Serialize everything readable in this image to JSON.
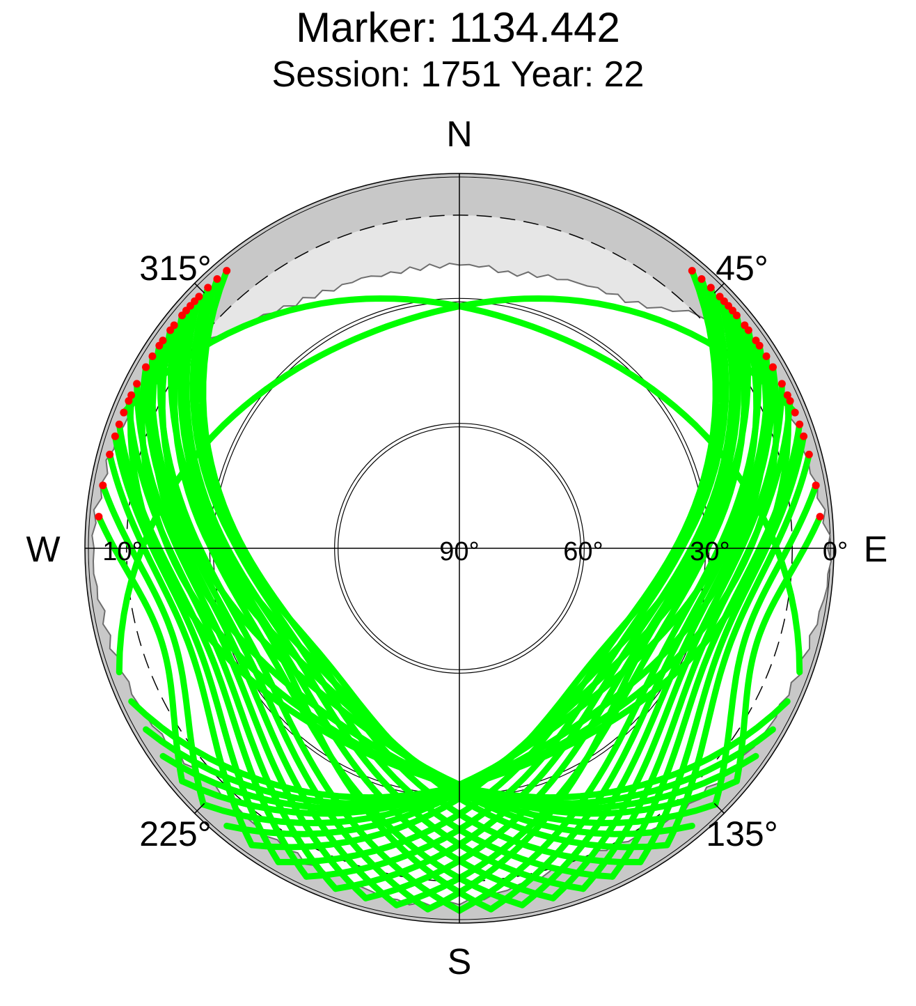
{
  "chart_data": {
    "type": "scatter",
    "projection": "polar-skyplot",
    "title": "Marker: 1134.442",
    "subtitle": "Session: 1751 Year: 22",
    "azimuth_labels": {
      "cardinals": [
        "N",
        "E",
        "S",
        "W"
      ],
      "diagonals": [
        "45°",
        "135°",
        "225°",
        "315°"
      ]
    },
    "elevation_tick_labels": [
      {
        "label": "0°",
        "elevation": 0
      },
      {
        "label": "10°",
        "elevation": 10
      },
      {
        "label": "30°",
        "elevation": 30
      },
      {
        "label": "60°",
        "elevation": 60
      },
      {
        "label": "90°",
        "elevation": 90
      }
    ],
    "elevation_circles": [
      0,
      10,
      30,
      60
    ],
    "dashed_circle_elevation": 10,
    "elevation_range": [
      0,
      90
    ],
    "azimuth_direction": "clockwise-from-north",
    "colors": {
      "track": "#00ff00",
      "endpoint": "#ff0000",
      "outer_band": "#c8c8c8",
      "mask": "#e6e6e6",
      "horizon_line": "#6e6e6e"
    },
    "horizon_profile": [
      {
        "az": 0,
        "el": 22
      },
      {
        "az": 5,
        "el": 22
      },
      {
        "az": 10,
        "el": 23
      },
      {
        "az": 15,
        "el": 22
      },
      {
        "az": 20,
        "el": 21
      },
      {
        "az": 25,
        "el": 20
      },
      {
        "az": 30,
        "el": 19
      },
      {
        "az": 35,
        "el": 18
      },
      {
        "az": 40,
        "el": 15
      },
      {
        "az": 45,
        "el": 10
      },
      {
        "az": 50,
        "el": 8
      },
      {
        "az": 55,
        "el": 6
      },
      {
        "az": 60,
        "el": 5
      },
      {
        "az": 65,
        "el": 5
      },
      {
        "az": 70,
        "el": 4
      },
      {
        "az": 75,
        "el": 4
      },
      {
        "az": 80,
        "el": 3
      },
      {
        "az": 85,
        "el": 2
      },
      {
        "az": 90,
        "el": 1
      },
      {
        "az": 95,
        "el": 1
      },
      {
        "az": 100,
        "el": 2
      },
      {
        "az": 105,
        "el": 3
      },
      {
        "az": 110,
        "el": 3
      },
      {
        "az": 115,
        "el": 4
      },
      {
        "az": 120,
        "el": 4
      },
      {
        "az": 125,
        "el": 5
      },
      {
        "az": 130,
        "el": 6
      },
      {
        "az": 135,
        "el": 7
      },
      {
        "az": 140,
        "el": 7
      },
      {
        "az": 145,
        "el": 8
      },
      {
        "az": 150,
        "el": 9
      },
      {
        "az": 155,
        "el": 10
      },
      {
        "az": 160,
        "el": 10
      },
      {
        "az": 165,
        "el": 9
      },
      {
        "az": 170,
        "el": 8
      },
      {
        "az": 175,
        "el": 6
      },
      {
        "az": 180,
        "el": 5
      },
      {
        "az": 185,
        "el": 4
      },
      {
        "az": 190,
        "el": 4
      },
      {
        "az": 195,
        "el": 5
      },
      {
        "az": 200,
        "el": 6
      },
      {
        "az": 205,
        "el": 6
      },
      {
        "az": 210,
        "el": 7
      },
      {
        "az": 215,
        "el": 7
      },
      {
        "az": 220,
        "el": 8
      },
      {
        "az": 225,
        "el": 8
      },
      {
        "az": 230,
        "el": 7
      },
      {
        "az": 235,
        "el": 6
      },
      {
        "az": 240,
        "el": 5
      },
      {
        "az": 245,
        "el": 4
      },
      {
        "az": 250,
        "el": 4
      },
      {
        "az": 255,
        "el": 3
      },
      {
        "az": 260,
        "el": 3
      },
      {
        "az": 265,
        "el": 2
      },
      {
        "az": 270,
        "el": 2
      },
      {
        "az": 275,
        "el": 2
      },
      {
        "az": 280,
        "el": 3
      },
      {
        "az": 285,
        "el": 3
      },
      {
        "az": 290,
        "el": 4
      },
      {
        "az": 295,
        "el": 5
      },
      {
        "az": 300,
        "el": 7
      },
      {
        "az": 305,
        "el": 9
      },
      {
        "az": 310,
        "el": 12
      },
      {
        "az": 315,
        "el": 15
      },
      {
        "az": 320,
        "el": 17
      },
      {
        "az": 325,
        "el": 19
      },
      {
        "az": 330,
        "el": 20
      },
      {
        "az": 335,
        "el": 21
      },
      {
        "az": 340,
        "el": 21
      },
      {
        "az": 345,
        "el": 22
      },
      {
        "az": 350,
        "el": 22
      },
      {
        "az": 355,
        "el": 22
      }
    ],
    "tracks": [
      {
        "az_start": 46,
        "az_end": 200,
        "el_max": 40
      },
      {
        "az_start": 48,
        "az_end": 195,
        "el_max": 38
      },
      {
        "az_start": 50,
        "az_end": 190,
        "el_max": 35
      },
      {
        "az_start": 52,
        "az_end": 185,
        "el_max": 37
      },
      {
        "az_start": 55,
        "az_end": 180,
        "el_max": 32
      },
      {
        "az_start": 58,
        "az_end": 175,
        "el_max": 30
      },
      {
        "az_start": 60,
        "az_end": 170,
        "el_max": 28
      },
      {
        "az_start": 63,
        "az_end": 165,
        "el_max": 26
      },
      {
        "az_start": 66,
        "az_end": 160,
        "el_max": 24
      },
      {
        "az_start": 70,
        "az_end": 155,
        "el_max": 22
      },
      {
        "az_start": 72,
        "az_end": 150,
        "el_max": 20
      },
      {
        "az_start": 75,
        "az_end": 145,
        "el_max": 18
      },
      {
        "az_start": 42,
        "az_end": 205,
        "el_max": 42
      },
      {
        "az_start": 40,
        "az_end": 210,
        "el_max": 44
      },
      {
        "az_start": 44,
        "az_end": 215,
        "el_max": 45
      },
      {
        "az_start": 47,
        "az_end": 220,
        "el_max": 43
      },
      {
        "az_start": 49,
        "az_end": 225,
        "el_max": 41
      },
      {
        "az_start": 53,
        "az_end": 230,
        "el_max": 39
      },
      {
        "az_start": 56,
        "az_end": 235,
        "el_max": 36
      },
      {
        "az_start": 60,
        "az_end": 240,
        "el_max": 34
      },
      {
        "az_start": 65,
        "az_end": 245,
        "el_max": 33
      },
      {
        "az_start": 68,
        "az_end": 250,
        "el_max": 31
      },
      {
        "az_start": 80,
        "az_end": 135,
        "el_max": 15
      },
      {
        "az_start": 85,
        "az_end": 130,
        "el_max": 12
      },
      {
        "az_start": 314,
        "az_end": 160,
        "el_max": 40
      },
      {
        "az_start": 312,
        "az_end": 165,
        "el_max": 38
      },
      {
        "az_start": 310,
        "az_end": 170,
        "el_max": 35
      },
      {
        "az_start": 308,
        "az_end": 175,
        "el_max": 37
      },
      {
        "az_start": 305,
        "az_end": 180,
        "el_max": 32
      },
      {
        "az_start": 302,
        "az_end": 185,
        "el_max": 30
      },
      {
        "az_start": 300,
        "az_end": 190,
        "el_max": 28
      },
      {
        "az_start": 297,
        "az_end": 195,
        "el_max": 26
      },
      {
        "az_start": 294,
        "az_end": 200,
        "el_max": 24
      },
      {
        "az_start": 290,
        "az_end": 205,
        "el_max": 22
      },
      {
        "az_start": 288,
        "az_end": 210,
        "el_max": 20
      },
      {
        "az_start": 285,
        "az_end": 215,
        "el_max": 18
      },
      {
        "az_start": 318,
        "az_end": 155,
        "el_max": 42
      },
      {
        "az_start": 320,
        "az_end": 150,
        "el_max": 44
      },
      {
        "az_start": 316,
        "az_end": 145,
        "el_max": 45
      },
      {
        "az_start": 313,
        "az_end": 140,
        "el_max": 43
      },
      {
        "az_start": 311,
        "az_end": 135,
        "el_max": 41
      },
      {
        "az_start": 307,
        "az_end": 130,
        "el_max": 39
      },
      {
        "az_start": 304,
        "az_end": 125,
        "el_max": 36
      },
      {
        "az_start": 300,
        "az_end": 120,
        "el_max": 34
      },
      {
        "az_start": 295,
        "az_end": 115,
        "el_max": 33
      },
      {
        "az_start": 292,
        "az_end": 110,
        "el_max": 31
      },
      {
        "az_start": 280,
        "az_end": 225,
        "el_max": 15
      },
      {
        "az_start": 275,
        "az_end": 230,
        "el_max": 12
      }
    ]
  }
}
